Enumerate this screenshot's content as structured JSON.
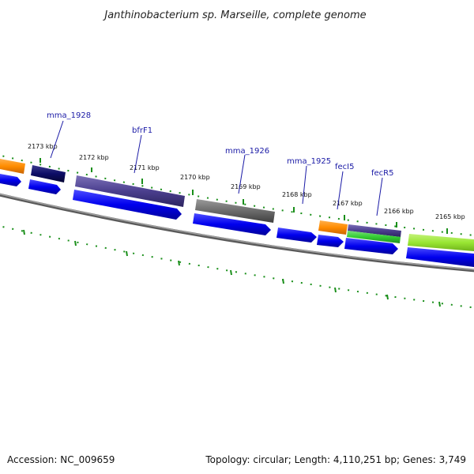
{
  "title": "Janthinobacterium sp. Marseille, complete genome",
  "footer": {
    "accession": "Accession: NC_009659",
    "summary": "Topology: circular; Length: 4,110,251 bp; Genes: 3,749"
  },
  "scale_labels": [
    "2173 kbp",
    "2172 kbp",
    "2171 kbp",
    "2170 kbp",
    "2169 kbp",
    "2168 kbp",
    "2167 kbp",
    "2166 kbp",
    "2165 kbp"
  ],
  "gene_labels": [
    "mma_1928",
    "bfrF1",
    "mma_1926",
    "mma_1925",
    "fecI5",
    "fecR5"
  ],
  "colors": {
    "cds_blue": "#0000ee",
    "navy": "#0d0d66",
    "purple": "#4b3f8e",
    "gray": "#6b6b6b",
    "orange": "#ff8c00",
    "lime": "#99e633",
    "green": "#33cc33",
    "backbone": "#808080",
    "tick_green": "#1a8f1a",
    "label_blue": "#1a1aa6"
  }
}
